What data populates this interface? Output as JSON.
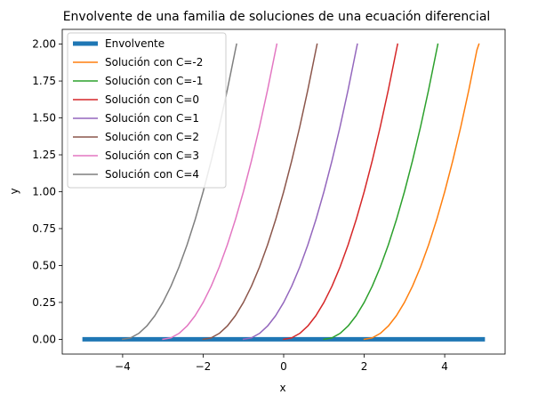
{
  "chart_data": {
    "type": "line",
    "title": "Envolvente de una familia de soluciones de una ecuación diferencial",
    "xlabel": "x",
    "ylabel": "y",
    "xlim": [
      -5.5,
      5.5
    ],
    "ylim": [
      -0.1,
      2.1
    ],
    "xticks": [
      -4,
      -2,
      0,
      2,
      4
    ],
    "xtick_labels": [
      "−4",
      "−2",
      "0",
      "2",
      "4"
    ],
    "yticks": [
      0.0,
      0.25,
      0.5,
      0.75,
      1.0,
      1.25,
      1.5,
      1.75,
      2.0
    ],
    "ytick_labels": [
      "0.00",
      "0.25",
      "0.50",
      "0.75",
      "1.00",
      "1.25",
      "1.50",
      "1.75",
      "2.00"
    ],
    "grid": false,
    "legend_position": "top-left",
    "series": [
      {
        "name": "Envolvente",
        "color": "#1f77b4",
        "x": [
          -5,
          5
        ],
        "y": [
          0,
          0
        ]
      },
      {
        "name": "Solución con C=-2",
        "color": "#ff7f0e",
        "x": [
          2.0,
          2.2,
          2.4,
          2.6,
          2.8,
          3.0,
          3.2,
          3.4,
          3.6,
          3.8,
          4.0,
          4.2,
          4.4,
          4.6,
          4.8,
          4.85
        ],
        "y": [
          0.0,
          0.01,
          0.04,
          0.09,
          0.16,
          0.25,
          0.36,
          0.49,
          0.64,
          0.81,
          1.0,
          1.21,
          1.44,
          1.69,
          1.96,
          2.0
        ]
      },
      {
        "name": "Solución con C=-1",
        "color": "#2ca02c",
        "x": [
          1.0,
          1.2,
          1.4,
          1.6,
          1.8,
          2.0,
          2.2,
          2.4,
          2.6,
          2.8,
          3.0,
          3.2,
          3.4,
          3.6,
          3.8,
          3.83
        ],
        "y": [
          0.0,
          0.01,
          0.04,
          0.09,
          0.16,
          0.25,
          0.36,
          0.49,
          0.64,
          0.81,
          1.0,
          1.21,
          1.44,
          1.69,
          1.96,
          2.0
        ]
      },
      {
        "name": "Solución con C=0",
        "color": "#d62728",
        "x": [
          0.0,
          0.2,
          0.4,
          0.6,
          0.8,
          1.0,
          1.2,
          1.4,
          1.6,
          1.8,
          2.0,
          2.2,
          2.4,
          2.6,
          2.8,
          2.83
        ],
        "y": [
          0.0,
          0.01,
          0.04,
          0.09,
          0.16,
          0.25,
          0.36,
          0.49,
          0.64,
          0.81,
          1.0,
          1.21,
          1.44,
          1.69,
          1.96,
          2.0
        ]
      },
      {
        "name": "Solución con C=1",
        "color": "#9467bd",
        "x": [
          -1.0,
          -0.8,
          -0.6,
          -0.4,
          -0.2,
          0.0,
          0.2,
          0.4,
          0.6,
          0.8,
          1.0,
          1.2,
          1.4,
          1.6,
          1.8,
          1.83
        ],
        "y": [
          0.0,
          0.01,
          0.04,
          0.09,
          0.16,
          0.25,
          0.36,
          0.49,
          0.64,
          0.81,
          1.0,
          1.21,
          1.44,
          1.69,
          1.96,
          2.0
        ]
      },
      {
        "name": "Solución con C=2",
        "color": "#8c564b",
        "x": [
          -2.0,
          -1.8,
          -1.6,
          -1.4,
          -1.2,
          -1.0,
          -0.8,
          -0.6,
          -0.4,
          -0.2,
          0.0,
          0.2,
          0.4,
          0.6,
          0.8,
          0.83
        ],
        "y": [
          0.0,
          0.01,
          0.04,
          0.09,
          0.16,
          0.25,
          0.36,
          0.49,
          0.64,
          0.81,
          1.0,
          1.21,
          1.44,
          1.69,
          1.96,
          2.0
        ]
      },
      {
        "name": "Solución con C=3",
        "color": "#e377c2",
        "x": [
          -3.0,
          -2.8,
          -2.6,
          -2.4,
          -2.2,
          -2.0,
          -1.8,
          -1.6,
          -1.4,
          -1.2,
          -1.0,
          -0.8,
          -0.6,
          -0.4,
          -0.2,
          -0.17
        ],
        "y": [
          0.0,
          0.01,
          0.04,
          0.09,
          0.16,
          0.25,
          0.36,
          0.49,
          0.64,
          0.81,
          1.0,
          1.21,
          1.44,
          1.69,
          1.96,
          2.0
        ]
      },
      {
        "name": "Solución con C=4",
        "color": "#7f7f7f",
        "x": [
          -4.0,
          -3.8,
          -3.6,
          -3.4,
          -3.2,
          -3.0,
          -2.8,
          -2.6,
          -2.4,
          -2.2,
          -2.0,
          -1.8,
          -1.6,
          -1.4,
          -1.2,
          -1.17
        ],
        "y": [
          0.0,
          0.01,
          0.04,
          0.09,
          0.16,
          0.25,
          0.36,
          0.49,
          0.64,
          0.81,
          1.0,
          1.21,
          1.44,
          1.69,
          1.96,
          2.0
        ]
      }
    ]
  }
}
